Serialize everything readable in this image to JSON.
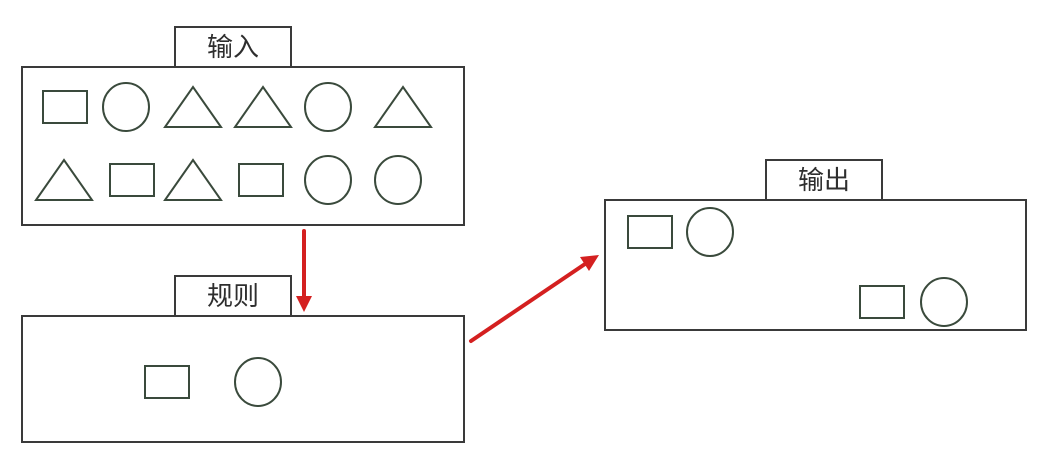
{
  "input": {
    "label": "输入",
    "rows": [
      [
        "rectangle",
        "circle",
        "triangle",
        "triangle",
        "circle",
        "triangle"
      ],
      [
        "triangle",
        "rectangle",
        "triangle",
        "rectangle",
        "circle",
        "circle"
      ]
    ]
  },
  "rule": {
    "label": "规则",
    "shapes": [
      "rectangle",
      "circle"
    ]
  },
  "output": {
    "label": "输出",
    "rows": [
      [
        "rectangle",
        "circle"
      ],
      [
        "rectangle",
        "circle"
      ]
    ]
  },
  "colors": {
    "stroke": "#3a3a3a",
    "arrow": "#d42020",
    "background": "#ffffff"
  }
}
